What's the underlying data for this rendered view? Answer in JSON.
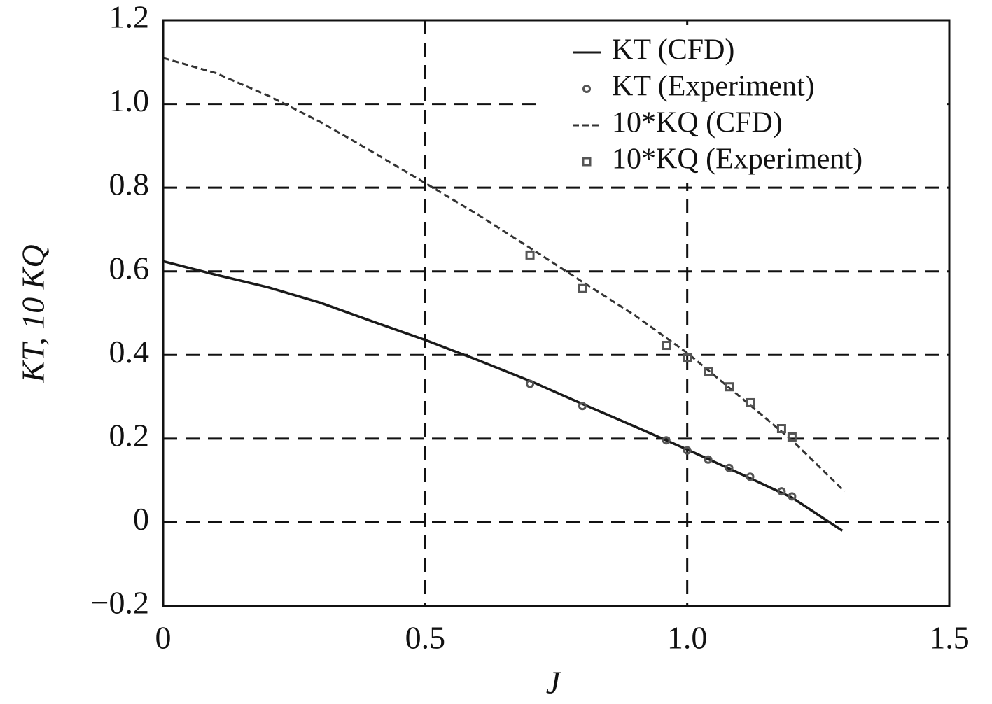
{
  "chart_data": {
    "type": "line",
    "xlabel": "J",
    "ylabel": "KT, 10 KQ",
    "xlim": [
      0,
      1.5
    ],
    "ylim": [
      -0.2,
      1.2
    ],
    "xticks": [
      0,
      0.5,
      {
        "value": 1,
        "label": "1.0"
      },
      1.5
    ],
    "yticks": [
      {
        "value": -0.2,
        "label": "−0.2"
      },
      0,
      0.2,
      0.4,
      0.6,
      0.8,
      {
        "value": 1,
        "label": "1.0"
      },
      1.2
    ],
    "grid": true,
    "legend": "upper right",
    "series": [
      {
        "name": "KT (CFD)",
        "type": "line",
        "dash": "solid",
        "color": "#1a1a1a",
        "x": [
          0,
          0.1,
          0.2,
          0.3,
          0.4,
          0.5,
          0.6,
          0.7,
          0.8,
          0.9,
          1.0,
          1.1,
          1.2,
          1.296
        ],
        "values": [
          0.624,
          0.592,
          0.562,
          0.525,
          0.48,
          0.436,
          0.388,
          0.338,
          0.283,
          0.229,
          0.174,
          0.117,
          0.059,
          -0.02
        ]
      },
      {
        "name": "KT (Experiment)",
        "type": "scatter",
        "marker": "circle",
        "color": "#555555",
        "x": [
          0.7,
          0.8,
          0.96,
          1.0,
          1.04,
          1.08,
          1.12,
          1.18,
          1.2
        ],
        "values": [
          0.331,
          0.278,
          0.196,
          0.172,
          0.15,
          0.13,
          0.109,
          0.074,
          0.062
        ]
      },
      {
        "name": "10*KQ (CFD)",
        "type": "line",
        "dash": "dashed",
        "color": "#333333",
        "x": [
          0,
          0.1,
          0.2,
          0.3,
          0.4,
          0.5,
          0.6,
          0.7,
          0.8,
          0.9,
          1.0,
          1.1,
          1.2,
          1.3
        ],
        "values": [
          1.11,
          1.074,
          1.02,
          0.957,
          0.885,
          0.811,
          0.736,
          0.656,
          0.575,
          0.495,
          0.405,
          0.301,
          0.196,
          0.074
        ]
      },
      {
        "name": "10*KQ (Experiment)",
        "type": "scatter",
        "marker": "square",
        "color": "#555555",
        "x": [
          0.7,
          0.8,
          0.96,
          1.0,
          1.04,
          1.08,
          1.12,
          1.18,
          1.2
        ],
        "values": [
          0.639,
          0.559,
          0.423,
          0.393,
          0.361,
          0.324,
          0.286,
          0.224,
          0.204
        ]
      }
    ]
  }
}
